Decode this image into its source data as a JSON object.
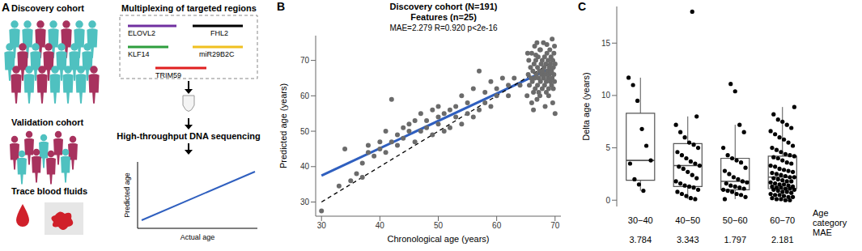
{
  "panel_a": {
    "panel_label": "A",
    "discovery_cohort": "Discovery cohort",
    "validation_cohort": "Validation cohort",
    "trace_samples": "Trace blood fluids",
    "multiplex_title": "Multiplexing of targeted regions",
    "regions": [
      {
        "name": "ELOVL2",
        "color": "#7030a0"
      },
      {
        "name": "FHL2",
        "color": "#000000"
      },
      {
        "name": "KLF14",
        "color": "#2e9e3e"
      },
      {
        "name": "miR29B2C",
        "color": "#f0c020"
      },
      {
        "name": "TRIM59",
        "color": "#e02020"
      }
    ],
    "sequencing": "High-throughput DNA sequencing",
    "plot_y_label": "Predicted age",
    "plot_x_label": "Actual age",
    "colors": [
      "#4fc1c0",
      "#a8325e"
    ]
  },
  "chart_data": [
    {
      "panel_label": "B",
      "type": "scatter",
      "title": "Discovery cohort (N=191)",
      "subtitle": "Features (n=25)",
      "annotations": [
        "MAE=2.279 R=0.920 p<2e-16"
      ],
      "x_label": "Chronological age (years)",
      "y_label": "Predicted age (years)",
      "xlim": [
        29,
        71
      ],
      "xticks": [
        30,
        40,
        50,
        60,
        70
      ],
      "ylim": [
        26,
        77
      ],
      "yticks": [
        30,
        40,
        50,
        60,
        70
      ],
      "color": "#6b6b6b",
      "x": [
        30,
        33,
        34,
        35,
        36,
        37,
        37,
        38,
        38,
        39,
        40,
        40,
        41,
        41,
        42,
        42,
        43,
        43,
        44,
        44,
        45,
        45,
        46,
        46,
        47,
        47,
        48,
        48,
        49,
        49,
        50,
        50,
        50,
        51,
        51,
        52,
        52,
        53,
        53,
        54,
        54,
        55,
        55,
        56,
        56,
        57,
        57,
        58,
        58,
        59,
        59,
        60,
        60,
        61,
        62,
        62,
        63,
        64,
        65.2,
        65.4,
        65.5,
        65.6,
        65.8,
        66.0,
        66.0,
        66.1,
        66.2,
        66.3,
        66.4,
        66.5,
        66.5,
        66.6,
        66.7,
        66.8,
        66.9,
        67.0,
        67.0,
        67.1,
        67.2,
        67.3,
        67.4,
        67.4,
        67.5,
        67.6,
        67.7,
        67.8,
        67.8,
        67.9,
        68.0,
        68.0,
        68.1,
        68.2,
        68.2,
        68.3,
        68.4,
        68.5,
        68.5,
        68.6,
        68.7,
        68.8,
        68.8,
        68.9,
        69.0,
        69.0,
        69.1,
        69.2,
        69.2,
        69.3,
        69.4,
        69.4,
        69.5,
        69.5,
        69.6,
        69.7,
        69.7,
        69.8,
        69.8,
        69.9,
        70.0,
        70.0,
        66.3,
        68.3,
        69.6,
        67.5,
        65.3,
        66.9,
        68.6,
        69.9,
        65.9,
        67.2,
        68.9,
        69.3,
        66.7
      ],
      "values": [
        27.5,
        34.5,
        45,
        36,
        38,
        37,
        41,
        46,
        44,
        43,
        45,
        47,
        44,
        50,
        47,
        59,
        46,
        49,
        51,
        48,
        50,
        52,
        47,
        53,
        50,
        55,
        51,
        53,
        49,
        56,
        52,
        57,
        54,
        55,
        50,
        56,
        51,
        54,
        57,
        60,
        52,
        55,
        58,
        62,
        54,
        56,
        67,
        58,
        61,
        57,
        64,
        60,
        62,
        65,
        60,
        63,
        65,
        63,
        60,
        66,
        70,
        63,
        68,
        72,
        58,
        64,
        67,
        61,
        69,
        74,
        65,
        62,
        70,
        66,
        59,
        68,
        63,
        71,
        65,
        67,
        60,
        73,
        64,
        69,
        66,
        62,
        70,
        67,
        75,
        65,
        68,
        63,
        71,
        66,
        69,
        61,
        64,
        72,
        67,
        65,
        70,
        62,
        68,
        66,
        73,
        64,
        69,
        71,
        63,
        67,
        76,
        65,
        70,
        68,
        62,
        66,
        72,
        64,
        69,
        55,
        56,
        57,
        58,
        73,
        72,
        75,
        74.5,
        74,
        65,
        61,
        60,
        66.5,
        71.5
      ],
      "lines": [
        {
          "type": "regression",
          "color": "#2f5fbf",
          "line_style": "solid"
        },
        {
          "type": "identity",
          "color": "#000000",
          "line_style": "dashed"
        }
      ]
    },
    {
      "panel_label": "C",
      "type": "box",
      "x_label": "Age category",
      "y_label": "Delta age (years)",
      "categories": [
        "30−40",
        "40−50",
        "50−60",
        "60−70"
      ],
      "ylim": [
        -0.6,
        18.5
      ],
      "yticks": [
        0,
        5,
        10,
        15
      ],
      "color": "#000000",
      "box_color": "#555555",
      "mae_label": "MAE",
      "mae": [
        3.784,
        3.343,
        1.797,
        2.181
      ],
      "boxes": [
        {
          "q1": 1.9,
          "median": 3.8,
          "q3": 8.3,
          "whisker_low": 0.9,
          "whisker_high": 11.7
        },
        {
          "q1": 1.3,
          "median": 3.3,
          "q3": 5.4,
          "whisker_low": 0.1,
          "whisker_high": 8.0
        },
        {
          "q1": 1.0,
          "median": 1.8,
          "q3": 4.0,
          "whisker_low": 0.1,
          "whisker_high": 7.2
        },
        {
          "q1": 1.1,
          "median": 2.2,
          "q3": 4.2,
          "whisker_low": 0.0,
          "whisker_high": 8.9
        }
      ],
      "points": [
        [
          11.7,
          11.0,
          9.5,
          6.8,
          5.2,
          3.8,
          3.5,
          2.0,
          1.5,
          0.9
        ],
        [
          18.0,
          8.0,
          7.2,
          6.5,
          6.0,
          5.5,
          5.3,
          5.0,
          4.6,
          4.3,
          4.0,
          3.7,
          3.5,
          3.3,
          3.2,
          3.0,
          2.7,
          2.4,
          2.1,
          1.8,
          1.6,
          1.4,
          1.3,
          1.2,
          1.0,
          0.8,
          0.6,
          0.4,
          0.2,
          0.1
        ],
        [
          11.1,
          10.4,
          7.2,
          6.5,
          5.0,
          4.3,
          4.0,
          3.8,
          3.6,
          3.1,
          2.8,
          2.5,
          2.2,
          2.0,
          1.8,
          1.7,
          1.6,
          1.4,
          1.3,
          1.2,
          1.1,
          1.0,
          0.9,
          0.8,
          0.6,
          0.5,
          0.3,
          0.1
        ],
        [
          8.9,
          8.2,
          7.7,
          7.5,
          7.2,
          6.9,
          6.6,
          6.3,
          6.0,
          5.8,
          5.5,
          5.2,
          5.0,
          4.8,
          4.6,
          4.4,
          4.3,
          4.2,
          4.1,
          4.0,
          3.8,
          3.6,
          3.5,
          3.3,
          3.2,
          3.0,
          2.9,
          2.8,
          2.7,
          2.6,
          2.5,
          2.4,
          2.3,
          2.2,
          2.2,
          2.1,
          2.0,
          1.9,
          1.8,
          1.8,
          1.7,
          1.6,
          1.5,
          1.5,
          1.4,
          1.3,
          1.3,
          1.2,
          1.2,
          1.1,
          1.1,
          1.0,
          1.0,
          0.9,
          0.8,
          0.8,
          0.7,
          0.6,
          0.5,
          0.5,
          0.4,
          0.3,
          0.3,
          0.2,
          0.1,
          0.1,
          0.0,
          0.0
        ]
      ]
    }
  ]
}
